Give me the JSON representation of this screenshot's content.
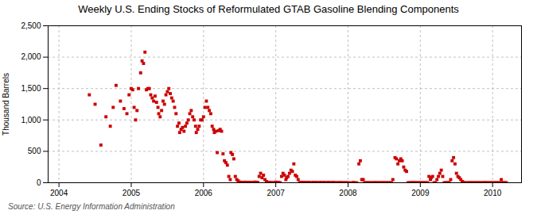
{
  "chart_data": {
    "type": "scatter",
    "title": "Weekly U.S. Ending Stocks of Reformulated GTAB Gasoline Blending Components",
    "ylabel": "Thousand Barrels",
    "source": "Source: U.S. Energy Information Administration",
    "color": "#cc0000",
    "marker": "square",
    "grid": true,
    "xlim": [
      2003.85,
      2010.4
    ],
    "xticks": [
      2004,
      2005,
      2006,
      2007,
      2008,
      2009,
      2010
    ],
    "ylim": [
      0,
      2500
    ],
    "yticks": [
      0,
      500,
      {
        "value": 1000,
        "label": "1,000"
      },
      {
        "value": 1500,
        "label": "1,500"
      },
      {
        "value": 2000,
        "label": "2,000"
      },
      {
        "value": 2500,
        "label": "2,500"
      }
    ],
    "x": [
      2004.42,
      2004.5,
      2004.58,
      2004.65,
      2004.71,
      2004.75,
      2004.79,
      2004.85,
      2004.9,
      2004.94,
      2004.97,
      2005.0,
      2005.02,
      2005.04,
      2005.06,
      2005.08,
      2005.1,
      2005.13,
      2005.15,
      2005.17,
      2005.19,
      2005.21,
      2005.23,
      2005.25,
      2005.27,
      2005.29,
      2005.31,
      2005.33,
      2005.35,
      2005.37,
      2005.38,
      2005.4,
      2005.42,
      2005.44,
      2005.46,
      2005.48,
      2005.5,
      2005.52,
      2005.54,
      2005.56,
      2005.58,
      2005.6,
      2005.62,
      2005.64,
      2005.66,
      2005.67,
      2005.69,
      2005.71,
      2005.73,
      2005.75,
      2005.77,
      2005.79,
      2005.81,
      2005.83,
      2005.85,
      2005.87,
      2005.89,
      2005.9,
      2005.92,
      2005.94,
      2005.96,
      2005.98,
      2006.0,
      2006.02,
      2006.04,
      2006.06,
      2006.08,
      2006.1,
      2006.12,
      2006.14,
      2006.15,
      2006.17,
      2006.19,
      2006.21,
      2006.23,
      2006.25,
      2006.27,
      2006.29,
      2006.31,
      2006.33,
      2006.35,
      2006.37,
      2006.38,
      2006.4,
      2006.42,
      2006.44,
      2006.46,
      2006.48,
      2006.5,
      2006.52,
      2006.54,
      2006.56,
      2006.58,
      2006.6,
      2006.62,
      2006.64,
      2006.65,
      2006.67,
      2006.69,
      2006.71,
      2006.73,
      2006.75,
      2006.77,
      2006.79,
      2006.81,
      2006.83,
      2006.85,
      2006.87,
      2006.89,
      2006.9,
      2006.92,
      2006.94,
      2006.96,
      2006.98,
      2007.0,
      2007.02,
      2007.04,
      2007.06,
      2007.08,
      2007.1,
      2007.12,
      2007.14,
      2007.15,
      2007.17,
      2007.19,
      2007.21,
      2007.23,
      2007.25,
      2007.27,
      2007.29,
      2007.31,
      2007.33,
      2007.35,
      2007.37,
      2007.38,
      2007.4,
      2007.42,
      2007.44,
      2007.46,
      2007.48,
      2007.5,
      2007.52,
      2007.54,
      2007.56,
      2007.58,
      2007.6,
      2007.62,
      2007.64,
      2007.65,
      2007.67,
      2007.69,
      2007.71,
      2007.73,
      2007.75,
      2007.77,
      2007.79,
      2007.81,
      2007.83,
      2007.85,
      2007.87,
      2007.89,
      2007.9,
      2007.92,
      2007.94,
      2007.96,
      2007.98,
      2008.0,
      2008.04,
      2008.08,
      2008.12,
      2008.15,
      2008.17,
      2008.19,
      2008.21,
      2008.23,
      2008.25,
      2008.27,
      2008.29,
      2008.31,
      2008.33,
      2008.35,
      2008.37,
      2008.38,
      2008.4,
      2008.42,
      2008.44,
      2008.46,
      2008.48,
      2008.5,
      2008.52,
      2008.54,
      2008.56,
      2008.58,
      2008.6,
      2008.62,
      2008.65,
      2008.67,
      2008.69,
      2008.71,
      2008.73,
      2008.75,
      2008.77,
      2008.79,
      2008.81,
      2008.83,
      2008.85,
      2008.87,
      2008.89,
      2008.9,
      2008.92,
      2008.94,
      2008.96,
      2008.98,
      2009.0,
      2009.02,
      2009.04,
      2009.06,
      2009.08,
      2009.1,
      2009.12,
      2009.14,
      2009.15,
      2009.17,
      2009.19,
      2009.21,
      2009.23,
      2009.25,
      2009.27,
      2009.29,
      2009.31,
      2009.33,
      2009.35,
      2009.37,
      2009.38,
      2009.4,
      2009.42,
      2009.44,
      2009.46,
      2009.48,
      2009.5,
      2009.52,
      2009.54,
      2009.56,
      2009.58,
      2009.6,
      2009.62,
      2009.65,
      2009.67,
      2009.69,
      2009.71,
      2009.73,
      2009.75,
      2009.77,
      2009.79,
      2009.81,
      2009.83,
      2009.85,
      2009.87,
      2009.89,
      2009.9,
      2009.92,
      2009.94,
      2009.96,
      2009.98,
      2010.0,
      2010.02,
      2010.04,
      2010.06,
      2010.08,
      2010.1,
      2010.12,
      2010.14,
      2010.15,
      2010.17,
      2010.19
    ],
    "values": [
      1400,
      1250,
      600,
      1050,
      900,
      1200,
      1550,
      1300,
      1180,
      1100,
      1400,
      1500,
      1480,
      1200,
      1000,
      1150,
      1500,
      1750,
      1940,
      1900,
      2080,
      1480,
      1500,
      1500,
      1400,
      1350,
      1300,
      1380,
      1280,
      1200,
      1100,
      1050,
      1150,
      1300,
      1250,
      1400,
      1450,
      1500,
      1420,
      1350,
      1300,
      1200,
      1100,
      900,
      950,
      800,
      850,
      880,
      820,
      900,
      950,
      1000,
      1100,
      1150,
      1050,
      1000,
      900,
      800,
      850,
      900,
      1000,
      1000,
      1050,
      1200,
      1300,
      1200,
      1150,
      1100,
      900,
      850,
      800,
      820,
      480,
      830,
      850,
      820,
      460,
      350,
      320,
      280,
      100,
      50,
      480,
      450,
      380,
      100,
      50,
      30,
      10,
      5,
      5,
      5,
      8,
      5,
      5,
      5,
      0,
      0,
      5,
      10,
      5,
      5,
      100,
      150,
      80,
      120,
      50,
      20,
      5,
      0,
      5,
      0,
      0,
      0,
      10,
      0,
      5,
      0,
      100,
      150,
      120,
      50,
      80,
      100,
      150,
      200,
      180,
      300,
      120,
      100,
      50,
      0,
      5,
      0,
      5,
      0,
      5,
      0,
      5,
      0,
      0,
      5,
      0,
      5,
      0,
      0,
      5,
      0,
      0,
      5,
      0,
      0,
      5,
      0,
      0,
      5,
      0,
      0,
      0,
      0,
      0,
      0,
      0,
      0,
      0,
      0,
      0,
      0,
      5,
      0,
      300,
      350,
      50,
      50,
      0,
      0,
      0,
      0,
      0,
      0,
      0,
      0,
      0,
      0,
      0,
      0,
      0,
      0,
      0,
      0,
      0,
      0,
      0,
      0,
      50,
      400,
      380,
      300,
      350,
      380,
      350,
      250,
      200,
      180,
      0,
      0,
      0,
      0,
      0,
      0,
      0,
      0,
      0,
      0,
      0,
      0,
      0,
      0,
      0,
      100,
      50,
      80,
      100,
      0,
      0,
      50,
      100,
      150,
      200,
      100,
      0,
      0,
      0,
      0,
      0,
      50,
      350,
      400,
      300,
      150,
      100,
      80,
      50,
      20,
      5,
      0,
      0,
      0,
      0,
      0,
      0,
      0,
      0,
      0,
      0,
      0,
      0,
      0,
      0,
      0,
      0,
      0,
      0,
      0,
      0,
      0,
      0,
      0,
      0,
      0,
      50,
      0,
      0,
      0,
      0
    ]
  }
}
